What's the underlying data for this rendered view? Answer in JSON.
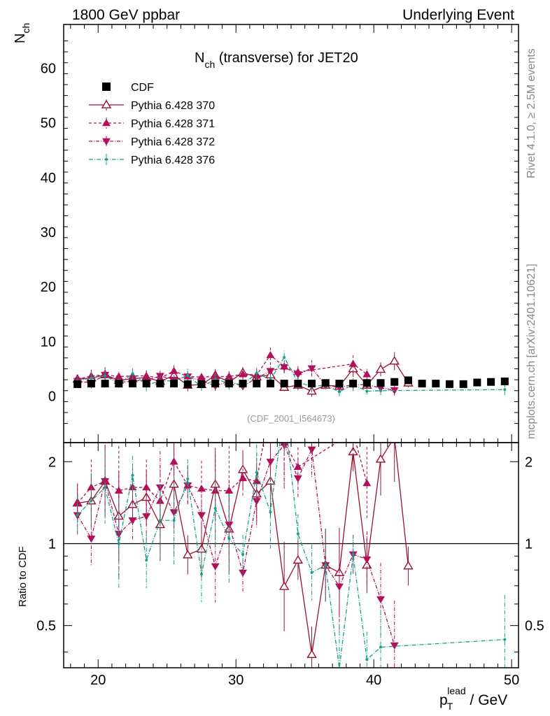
{
  "header": {
    "left": "1800 GeV ppbar",
    "right": "Underlying Event",
    "title": "N",
    "title_sub": "ch",
    "title_rest": " (transverse) for JET20",
    "analysis_id": "(CDF_2001_I564673)",
    "side_rivet": "Rivet 4.1.0, ≥ 2.5M events",
    "side_mcplots": "mcplots.cern.ch [arXiv:2401.10621]"
  },
  "legend": {
    "entries": [
      {
        "label": "CDF",
        "color": "#000000",
        "marker": "square",
        "dash": ""
      },
      {
        "label": "Pythia 6.428 370",
        "color": "#9b1030",
        "marker": "triangle-open",
        "dash": ""
      },
      {
        "label": "Pythia 6.428 371",
        "color": "#b3105a",
        "marker": "triangle",
        "dash": "4,3"
      },
      {
        "label": "Pythia 6.428 372",
        "color": "#b3105a",
        "marker": "triangle-down",
        "dash": "5,2,1,2"
      },
      {
        "label": "Pythia 6.428 376",
        "color": "#1aa08a",
        "marker": "dot",
        "dash": "6,2,1,2"
      }
    ]
  },
  "chart_data": {
    "type": "scatter",
    "title": "N_ch (transverse) for JET20",
    "xlabel": "p_T^lead / GeV",
    "ylabel": "N_ch",
    "ratio_ylabel": "Ratio to CDF",
    "xlim": [
      17.5,
      50.5
    ],
    "ylim": [
      -8.5,
      68
    ],
    "ratio_ylim": [
      0.35,
      2.35
    ],
    "xticks": [
      20,
      30,
      40,
      50
    ],
    "xtick_labels": [
      "20",
      "30",
      "40",
      "50"
    ],
    "yticks": [
      0,
      10,
      20,
      30,
      40,
      50,
      60
    ],
    "ytick_labels": [
      "0",
      "10",
      "20",
      "30",
      "40",
      "50",
      "60"
    ],
    "ratio_yticks": [
      0.5,
      1,
      2
    ],
    "ratio_ytick_labels": [
      "0.5",
      "1",
      "2"
    ],
    "x": [
      18.5,
      19.5,
      20.5,
      21.5,
      22.5,
      23.5,
      24.5,
      25.5,
      26.5,
      27.5,
      28.5,
      29.5,
      30.5,
      31.5,
      32.5,
      33.5,
      34.5,
      35.5,
      36.5,
      37.5,
      38.5,
      39.5,
      40.5,
      41.5,
      42.5,
      43.5,
      44.5,
      45.5,
      46.5,
      47.5,
      48.5,
      49.5
    ],
    "cdf": [
      2.2,
      2.3,
      2.3,
      2.3,
      2.3,
      2.3,
      2.3,
      2.3,
      2.2,
      2.2,
      2.3,
      2.3,
      2.3,
      2.3,
      2.3,
      2.3,
      2.3,
      2.3,
      2.4,
      2.3,
      2.3,
      2.4,
      2.4,
      2.6,
      2.9,
      2.3,
      2.3,
      2.2,
      2.2,
      2.5,
      2.6,
      2.7
    ],
    "series": [
      {
        "name": "Pythia 6.428 370",
        "x": [
          18.5,
          19.5,
          20.5,
          21.5,
          22.5,
          23.5,
          24.5,
          25.5,
          26.5,
          27.5,
          28.5,
          29.5,
          30.5,
          31.5,
          32.5,
          33.5,
          34.5,
          35.5,
          36.5,
          37.5,
          38.5,
          39.5,
          40.5,
          41.5,
          42.5
        ],
        "y": [
          3.1,
          3.3,
          3.9,
          2.9,
          3.2,
          3.4,
          2.7,
          3.8,
          2.0,
          2.1,
          3.8,
          2.6,
          4.3,
          3.5,
          3.9,
          1.6,
          2.0,
          0.9,
          2.0,
          1.8,
          5.0,
          2.0,
          4.9,
          6.4,
          2.4
        ]
      },
      {
        "name": "Pythia 6.428 371",
        "x": [
          18.5,
          19.5,
          20.5,
          21.5,
          22.5,
          23.5,
          24.5,
          25.5,
          26.5,
          27.5,
          28.5,
          29.5,
          30.5,
          31.5,
          32.5,
          33.5,
          34.5,
          38.5,
          39.5
        ],
        "y": [
          3.1,
          3.7,
          3.9,
          3.6,
          3.7,
          3.7,
          3.3,
          4.6,
          3.6,
          3.5,
          3.6,
          3.6,
          4.0,
          3.9,
          7.5,
          5.4,
          4.4,
          5.9,
          4.0
        ]
      },
      {
        "name": "Pythia 6.428 372",
        "x": [
          18.5,
          19.5,
          20.5,
          21.5,
          22.5,
          23.5,
          24.5,
          25.5,
          26.5,
          27.5,
          28.5,
          29.5,
          30.5,
          31.5,
          32.5,
          33.5,
          34.5,
          35.5,
          36.5,
          37.5,
          38.5,
          39.5,
          40.5,
          41.5
        ],
        "y": [
          2.8,
          2.4,
          3.9,
          2.5,
          2.8,
          2.9,
          3.7,
          3.0,
          3.6,
          2.8,
          1.9,
          2.7,
          1.8,
          3.3,
          4.6,
          5.3,
          4.0,
          5.1,
          2.0,
          1.6,
          2.1,
          2.1,
          1.5,
          1.1
        ]
      },
      {
        "name": "Pythia 6.428 376",
        "x": [
          18.5,
          19.5,
          20.5,
          21.5,
          22.5,
          23.5,
          24.5,
          25.5,
          26.5,
          27.5,
          28.5,
          29.5,
          30.5,
          31.5,
          32.5,
          33.5,
          34.5,
          35.5,
          36.5,
          37.5,
          38.5,
          39.5,
          40.5,
          49.5
        ],
        "y": [
          2.8,
          3.3,
          3.7,
          2.3,
          4.1,
          2.0,
          2.8,
          2.8,
          3.8,
          1.7,
          3.1,
          2.4,
          2.1,
          4.2,
          3.0,
          7.1,
          2.5,
          1.8,
          2.0,
          0.8,
          2.1,
          0.9,
          1.0,
          1.2
        ]
      }
    ]
  }
}
